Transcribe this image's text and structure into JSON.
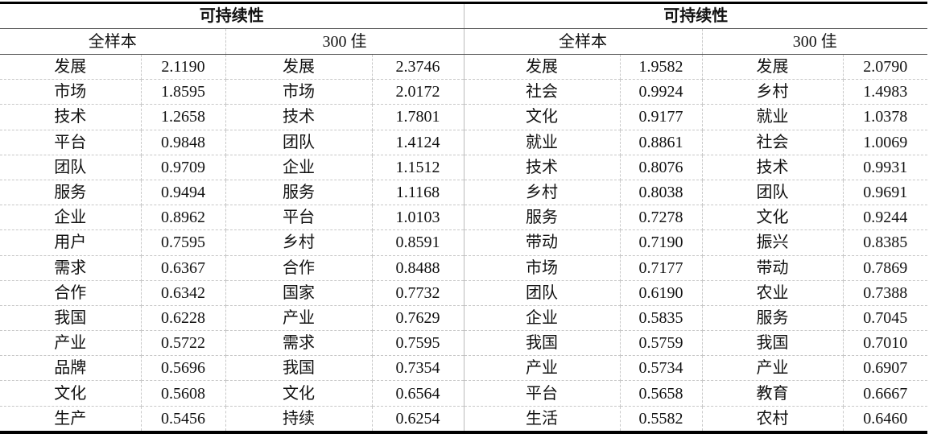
{
  "header": {
    "groups": [
      {
        "title": "可持续性",
        "sub": [
          "全样本",
          "300 佳"
        ]
      },
      {
        "title": "可持续性",
        "sub": [
          "全样本",
          "300 佳"
        ]
      }
    ]
  },
  "columns": [
    [
      [
        "发展",
        "2.1190"
      ],
      [
        "市场",
        "1.8595"
      ],
      [
        "技术",
        "1.2658"
      ],
      [
        "平台",
        "0.9848"
      ],
      [
        "团队",
        "0.9709"
      ],
      [
        "服务",
        "0.9494"
      ],
      [
        "企业",
        "0.8962"
      ],
      [
        "用户",
        "0.7595"
      ],
      [
        "需求",
        "0.6367"
      ],
      [
        "合作",
        "0.6342"
      ],
      [
        "我国",
        "0.6228"
      ],
      [
        "产业",
        "0.5722"
      ],
      [
        "品牌",
        "0.5696"
      ],
      [
        "文化",
        "0.5608"
      ],
      [
        "生产",
        "0.5456"
      ]
    ],
    [
      [
        "发展",
        "2.3746"
      ],
      [
        "市场",
        "2.0172"
      ],
      [
        "技术",
        "1.7801"
      ],
      [
        "团队",
        "1.4124"
      ],
      [
        "企业",
        "1.1512"
      ],
      [
        "服务",
        "1.1168"
      ],
      [
        "平台",
        "1.0103"
      ],
      [
        "乡村",
        "0.8591"
      ],
      [
        "合作",
        "0.8488"
      ],
      [
        "国家",
        "0.7732"
      ],
      [
        "产业",
        "0.7629"
      ],
      [
        "需求",
        "0.7595"
      ],
      [
        "我国",
        "0.7354"
      ],
      [
        "文化",
        "0.6564"
      ],
      [
        "持续",
        "0.6254"
      ]
    ],
    [
      [
        "发展",
        "1.9582"
      ],
      [
        "社会",
        "0.9924"
      ],
      [
        "文化",
        "0.9177"
      ],
      [
        "就业",
        "0.8861"
      ],
      [
        "技术",
        "0.8076"
      ],
      [
        "乡村",
        "0.8038"
      ],
      [
        "服务",
        "0.7278"
      ],
      [
        "带动",
        "0.7190"
      ],
      [
        "市场",
        "0.7177"
      ],
      [
        "团队",
        "0.6190"
      ],
      [
        "企业",
        "0.5835"
      ],
      [
        "我国",
        "0.5759"
      ],
      [
        "产业",
        "0.5734"
      ],
      [
        "平台",
        "0.5658"
      ],
      [
        "生活",
        "0.5582"
      ]
    ],
    [
      [
        "发展",
        "2.0790"
      ],
      [
        "乡村",
        "1.4983"
      ],
      [
        "就业",
        "1.0378"
      ],
      [
        "社会",
        "1.0069"
      ],
      [
        "技术",
        "0.9931"
      ],
      [
        "团队",
        "0.9691"
      ],
      [
        "文化",
        "0.9244"
      ],
      [
        "振兴",
        "0.8385"
      ],
      [
        "带动",
        "0.7869"
      ],
      [
        "农业",
        "0.7388"
      ],
      [
        "服务",
        "0.7045"
      ],
      [
        "我国",
        "0.7010"
      ],
      [
        "产业",
        "0.6907"
      ],
      [
        "教育",
        "0.6667"
      ],
      [
        "农村",
        "0.6460"
      ]
    ]
  ]
}
